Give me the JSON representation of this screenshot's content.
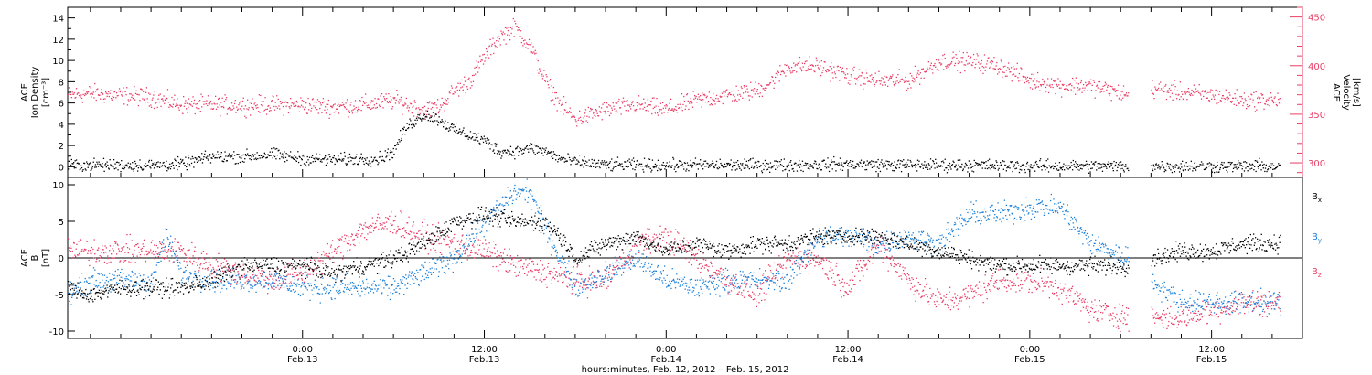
{
  "xlabel": "hours:minutes, Feb. 12, 2012 – Feb. 15, 2012",
  "colors": {
    "black": "#000000",
    "blue": "#1a7fd9",
    "red": "#e83c64"
  },
  "chart_data": [
    {
      "type": "scatter",
      "panel": "top",
      "ylabel_left": [
        "ACE",
        "Ion Density",
        "[cm⁻³]"
      ],
      "ylabel_right": [
        "ACE",
        "Velocity",
        "[km/s]"
      ],
      "ylim_left": [
        -1,
        15
      ],
      "yticks_left": [
        "0",
        "2",
        "4",
        "6",
        "8",
        "10",
        "12",
        "14"
      ],
      "ylim_right": [
        285,
        460
      ],
      "yticks_right": [
        "300",
        "350",
        "400",
        "450"
      ],
      "xlim_hours": [
        -15.5,
        66
      ],
      "xticks": [
        {
          "h": 0,
          "l1": "0:00",
          "l2": "Feb.13"
        },
        {
          "h": 12,
          "l1": "12:00",
          "l2": "Feb.13"
        },
        {
          "h": 24,
          "l1": "0:00",
          "l2": "Feb.14"
        },
        {
          "h": 36,
          "l1": "12:00",
          "l2": "Feb.14"
        },
        {
          "h": 48,
          "l1": "0:00",
          "l2": "Feb.15"
        },
        {
          "h": 60,
          "l1": "12:00",
          "l2": "Feb.15"
        }
      ],
      "gaps_hours": [
        [
          54.5,
          56.0
        ]
      ],
      "series": [
        {
          "color": "#000000",
          "axis": "left",
          "noise": 0.5,
          "x": [
            -15.5,
            -12,
            -10,
            -8,
            -6,
            -4,
            -2,
            0,
            2,
            4,
            5,
            6,
            6.5,
            7,
            8,
            9,
            10,
            11,
            12,
            13,
            14,
            15,
            16,
            17,
            18,
            20,
            22,
            24,
            28,
            32,
            36,
            40,
            44,
            48,
            52,
            54.5,
            56,
            60,
            64.5
          ],
          "y": [
            0.2,
            0.2,
            0.2,
            0.3,
            1.0,
            1.0,
            1.2,
            0.8,
            0.7,
            0.8,
            0.8,
            1.5,
            3.0,
            4.0,
            5.0,
            4.5,
            3.5,
            3.0,
            2.5,
            1.5,
            1.5,
            1.8,
            1.5,
            0.8,
            0.5,
            0.2,
            0.2,
            0.2,
            0.2,
            0.2,
            0.3,
            0.2,
            0.2,
            0.1,
            0.1,
            0.1,
            0.1,
            0.1,
            0.1
          ]
        },
        {
          "color": "#e83c64",
          "axis": "right",
          "noise": 8,
          "x": [
            -15.5,
            -14,
            -12,
            -10,
            -8,
            -6,
            -4,
            -2,
            0,
            2,
            4,
            6,
            7,
            8,
            9,
            10,
            11,
            12,
            13,
            14,
            15,
            16,
            17,
            18,
            20,
            22,
            24,
            26,
            28,
            30,
            31,
            32,
            34,
            36,
            38,
            40,
            42,
            44,
            46,
            48,
            50,
            52,
            54.5,
            56,
            58,
            60,
            62,
            64.5
          ],
          "y": [
            370,
            372,
            370,
            368,
            360,
            360,
            360,
            360,
            360,
            358,
            360,
            365,
            360,
            355,
            358,
            375,
            385,
            410,
            430,
            440,
            420,
            385,
            360,
            345,
            355,
            360,
            355,
            365,
            370,
            375,
            385,
            400,
            400,
            390,
            385,
            385,
            405,
            405,
            400,
            385,
            380,
            380,
            370,
            377,
            373,
            370,
            365,
            365
          ]
        }
      ]
    },
    {
      "type": "scatter",
      "panel": "bottom",
      "ylabel": [
        "ACE",
        "B",
        "[nT]"
      ],
      "ylim": [
        -11,
        11
      ],
      "yticks": [
        "-10",
        "-5",
        "0",
        "5",
        "10"
      ],
      "legend": [
        "Bₓ",
        "Bᵧ",
        "B_z"
      ],
      "legend_labels": [
        {
          "main": "B",
          "sub": "x",
          "color": "#000000"
        },
        {
          "main": "B",
          "sub": "y",
          "color": "#1a7fd9"
        },
        {
          "main": "B",
          "sub": "z",
          "color": "#e83c64"
        }
      ],
      "legend_placement": "right",
      "series": [
        {
          "name": "Bx",
          "color": "#000000",
          "noise": 1.0,
          "x": [
            -15.5,
            -14,
            -12,
            -10,
            -8,
            -6,
            -4,
            -2,
            0,
            2,
            4,
            6,
            8,
            10,
            12,
            14,
            16,
            17,
            18,
            20,
            22,
            24,
            26,
            28,
            30,
            32,
            34,
            36,
            38,
            40,
            42,
            44,
            46,
            48,
            50,
            52,
            54.5,
            56,
            58,
            60,
            62,
            64.5
          ],
          "y": [
            -4,
            -5,
            -4,
            -4,
            -4,
            -3,
            -1,
            -1,
            -1,
            -2,
            -1,
            0,
            2,
            5,
            6,
            5,
            5,
            3,
            0,
            2,
            3,
            1,
            2,
            1,
            2,
            2,
            3,
            3,
            3,
            2,
            1,
            0,
            -1,
            -1,
            -1,
            -1,
            -1,
            0,
            1,
            1,
            2,
            2
          ]
        },
        {
          "name": "By",
          "color": "#1a7fd9",
          "noise": 1.3,
          "x": [
            -15.5,
            -14,
            -12,
            -10,
            -9,
            -8,
            -6,
            -4,
            -2,
            0,
            2,
            4,
            6,
            8,
            10,
            12,
            13,
            14,
            15,
            16,
            17,
            18,
            20,
            22,
            24,
            26,
            28,
            30,
            32,
            34,
            36,
            38,
            40,
            42,
            44,
            46,
            48,
            50,
            52,
            54.5,
            56,
            58,
            60,
            62,
            64.5
          ],
          "y": [
            -5,
            -3,
            -3,
            -3,
            3,
            -2,
            -3,
            -3,
            -3,
            -4,
            -4,
            -4,
            -4,
            -2,
            0,
            5,
            7,
            9,
            9,
            4,
            0,
            -4,
            -2,
            0,
            -3,
            -4,
            -3,
            -3,
            -3,
            3,
            3,
            2,
            3,
            2,
            6,
            6,
            7,
            7,
            2,
            0,
            -3,
            -6,
            -6,
            -6,
            -6
          ]
        },
        {
          "name": "Bz",
          "color": "#e83c64",
          "noise": 1.5,
          "x": [
            -15.5,
            -14,
            -12,
            -10,
            -8,
            -6,
            -4,
            -2,
            0,
            2,
            4,
            6,
            8,
            10,
            12,
            14,
            16,
            18,
            20,
            22,
            24,
            26,
            28,
            30,
            32,
            34,
            36,
            38,
            40,
            42,
            44,
            46,
            48,
            50,
            52,
            54.5,
            56,
            58,
            60,
            62,
            64.5
          ],
          "y": [
            1,
            1,
            1,
            1,
            1,
            -1,
            -2,
            -3,
            -2,
            1,
            4,
            5,
            3,
            2,
            1,
            -1,
            -2,
            -3,
            -3,
            2,
            3,
            0,
            -3,
            -5,
            0,
            0,
            -4,
            2,
            -3,
            -6,
            -5,
            -3,
            -3,
            -4,
            -7,
            -8,
            -8,
            -8,
            -7,
            -6,
            -6
          ]
        }
      ]
    }
  ]
}
